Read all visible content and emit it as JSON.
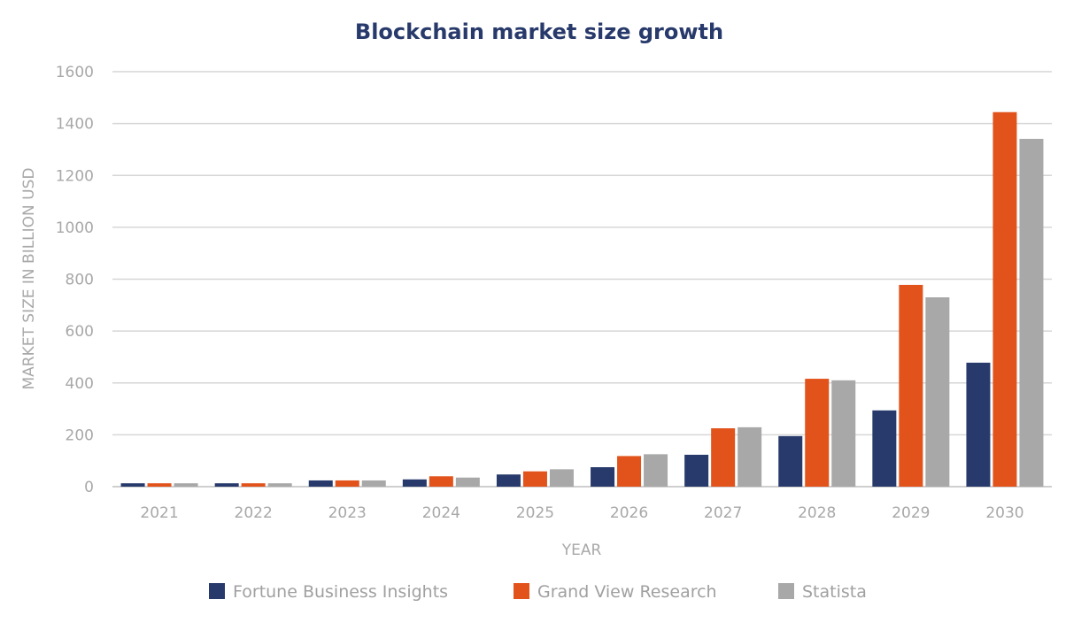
{
  "chart_data": {
    "type": "bar",
    "title": "Blockchain market size growth",
    "xlabel": "YEAR",
    "ylabel": "MARKET SIZE IN BILLION USD",
    "ylim": [
      0,
      1600
    ],
    "yticks": [
      0,
      200,
      400,
      600,
      800,
      1000,
      1200,
      1400,
      1600
    ],
    "grid": true,
    "legend_position": "bottom",
    "categories": [
      "2021",
      "2022",
      "2023",
      "2024",
      "2025",
      "2026",
      "2027",
      "2028",
      "2029",
      "2030"
    ],
    "series": [
      {
        "name": "Fortune Business Insights",
        "color": "#283a6b",
        "values": [
          13,
          13,
          24,
          28,
          47,
          75,
          123,
          195,
          294,
          478
        ]
      },
      {
        "name": "Grand View Research",
        "color": "#e2521b",
        "values": [
          13,
          13,
          24,
          40,
          59,
          118,
          225,
          416,
          778,
          1444
        ]
      },
      {
        "name": "Statista",
        "color": "#a8a8a8",
        "values": [
          13,
          13,
          24,
          35,
          67,
          125,
          229,
          410,
          730,
          1341
        ]
      }
    ]
  }
}
